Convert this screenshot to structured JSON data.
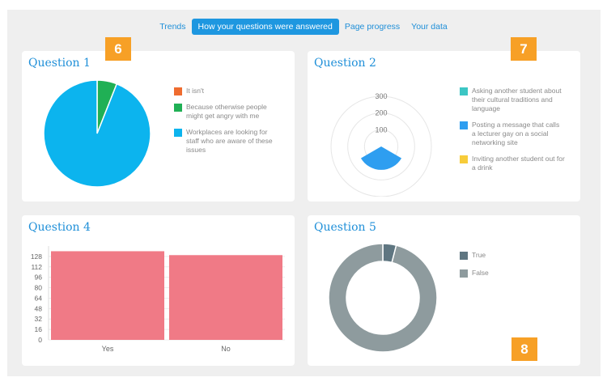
{
  "tabs": [
    {
      "label": "Trends",
      "active": false
    },
    {
      "label": "How your questions were answered",
      "active": true
    },
    {
      "label": "Page progress",
      "active": false
    },
    {
      "label": "Your data",
      "active": false
    }
  ],
  "badges": {
    "q1": "6",
    "q2": "7",
    "q5": "8"
  },
  "colors": {
    "accent": "#1e97e0",
    "badge": "#f7a026"
  },
  "q1": {
    "title": "Question 1",
    "legend": [
      {
        "label": "It isn't",
        "color": "#ef6c2f"
      },
      {
        "label": "Because otherwise people might get angry with me",
        "color": "#20b055"
      },
      {
        "label": "Workplaces are looking for staff who are aware of these issues",
        "color": "#0cb4ee"
      }
    ]
  },
  "q2": {
    "title": "Question 2",
    "legend": [
      {
        "label": "Asking another student about their cultural traditions and language",
        "color": "#3cc6c4"
      },
      {
        "label": "Posting a message that calls a lecturer gay on a social networking site",
        "color": "#2e9ef0"
      },
      {
        "label": "Inviting another student out for a drink",
        "color": "#f7cc3a"
      }
    ]
  },
  "q4": {
    "title": "Question 4"
  },
  "q5": {
    "title": "Question 5",
    "legend": [
      {
        "label": "True",
        "color": "#5f7681"
      },
      {
        "label": "False",
        "color": "#8e9b9e"
      }
    ]
  },
  "chart_data": [
    {
      "type": "pie",
      "title": "Question 1",
      "categories": [
        "It isn't",
        "Because otherwise people might get angry with me",
        "Workplaces are looking for staff who are aware of these issues"
      ],
      "values": [
        0,
        6,
        94
      ]
    },
    {
      "type": "polar-area",
      "title": "Question 2",
      "categories": [
        "Asking another student about their cultural traditions and language",
        "Posting a message that calls a lecturer gay on a social networking site",
        "Inviting another student out for a drink"
      ],
      "values": [
        0,
        140,
        0
      ],
      "ticks": [
        100,
        200,
        300
      ],
      "rmax": 300
    },
    {
      "type": "bar",
      "title": "Question 4",
      "categories": [
        "Yes",
        "No"
      ],
      "values": [
        136,
        130
      ],
      "yticks": [
        0,
        16,
        32,
        48,
        64,
        80,
        96,
        112,
        128
      ],
      "ylim": [
        0,
        144
      ],
      "color": "#f07a86"
    },
    {
      "type": "pie",
      "donut": true,
      "title": "Question 5",
      "categories": [
        "True",
        "False"
      ],
      "values": [
        4,
        96
      ]
    }
  ]
}
